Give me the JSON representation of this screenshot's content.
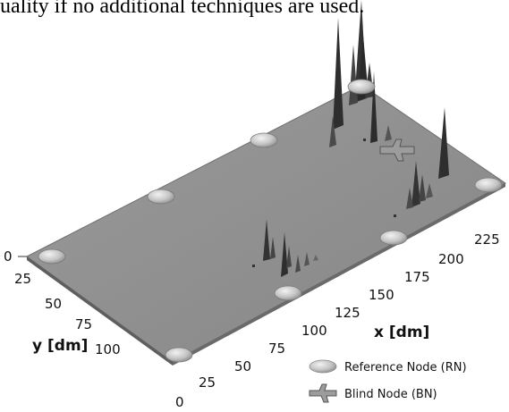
{
  "caption": "uality if no additional techniques are used.",
  "axes": {
    "z_tick": "0",
    "x_label": "x [dm]",
    "y_label": "y [dm]",
    "x_ticks": [
      "0",
      "25",
      "50",
      "75",
      "100",
      "125",
      "150",
      "175",
      "200",
      "225"
    ],
    "y_ticks": [
      "25",
      "50",
      "75",
      "100"
    ]
  },
  "legend": {
    "reference_node": "Reference Node (RN)",
    "blind_node": "Blind Node (BN)"
  },
  "colors": {
    "plane": "#8f8f8f",
    "plane_edge": "#6f6f6f",
    "node": "#cfcfcf",
    "peak": "#3a3a3a"
  }
}
